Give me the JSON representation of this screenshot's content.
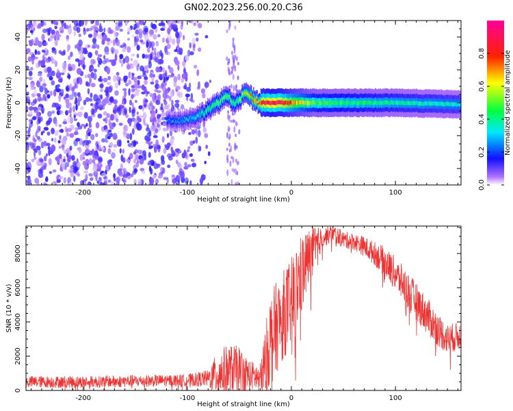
{
  "title": "GN02.2023.256.00.20.C36",
  "chart_data": [
    {
      "type": "heatmap",
      "xlabel": "Height of straight line (km)",
      "ylabel": "Frequency (Hz)",
      "xlim": [
        -255,
        163
      ],
      "ylim": [
        -50,
        50
      ],
      "x_ticks": [
        -200,
        -100,
        0,
        100
      ],
      "x_tick_labels": [
        "-200",
        "-100",
        "0",
        "100"
      ],
      "y_ticks": [
        -40,
        -20,
        0,
        20,
        40
      ],
      "y_tick_labels": [
        "-40",
        "-20",
        "0",
        "20",
        "40"
      ],
      "colorbar": {
        "label": "Normalized spectral amplitude",
        "range": [
          0,
          1
        ],
        "ticks": [
          0.0,
          0.2,
          0.4,
          0.6,
          0.8
        ],
        "tick_labels": [
          "0.0",
          "0.2",
          "0.4",
          "0.6",
          "0.8"
        ],
        "colormap": "rainbow (white - purple - blue - cyan - green - yellow - red - magenta)"
      },
      "signal_track": {
        "description_points_x": [
          -120,
          -100,
          -90,
          -80,
          -70,
          -62,
          -55,
          -50,
          -45,
          -40,
          -35,
          -30,
          -20,
          -10,
          0,
          20,
          50,
          100,
          163
        ],
        "frequency_hz": [
          -11,
          -10,
          -8,
          -4,
          0,
          5,
          -1,
          2,
          6,
          4,
          1,
          0,
          0,
          0,
          0,
          0,
          0,
          0,
          -1
        ],
        "peak_amplitude": [
          0.25,
          0.3,
          0.35,
          0.45,
          0.5,
          0.5,
          0.45,
          0.5,
          0.6,
          0.7,
          0.8,
          0.85,
          0.95,
          0.9,
          0.75,
          0.5,
          0.45,
          0.4,
          0.35
        ]
      },
      "noise_region_x": [
        -255,
        -85
      ]
    },
    {
      "type": "line",
      "xlabel": "Height of straight line (km)",
      "ylabel": "SNR (10 * v/v)",
      "xlim": [
        -255,
        163
      ],
      "ylim": [
        0,
        9600
      ],
      "x_ticks": [
        -200,
        -100,
        0,
        100
      ],
      "x_tick_labels": [
        "-200",
        "-100",
        "0",
        "100"
      ],
      "y_ticks": [
        0,
        2000,
        4000,
        6000,
        8000
      ],
      "y_tick_labels": [
        "0",
        "2000",
        "4000",
        "6000",
        "8000"
      ],
      "series": [
        {
          "color": "#ee3333",
          "envelope_x": [
            -255,
            -200,
            -150,
            -100,
            -80,
            -70,
            -60,
            -50,
            -40,
            -30,
            -25,
            -20,
            -10,
            0,
            10,
            20,
            30,
            40,
            50,
            60,
            70,
            80,
            90,
            100,
            110,
            120,
            130,
            140,
            150,
            163
          ],
          "envelope_y": [
            500,
            500,
            550,
            600,
            700,
            1000,
            1200,
            1200,
            900,
            700,
            1800,
            3000,
            4200,
            5200,
            6800,
            8200,
            8900,
            9200,
            8800,
            8700,
            8400,
            8000,
            7500,
            6800,
            6000,
            5200,
            4400,
            3600,
            3000,
            3200
          ],
          "noise_amplitude": [
            350,
            350,
            350,
            350,
            500,
            1400,
            1500,
            1400,
            900,
            800,
            2000,
            2800,
            2600,
            2600,
            2400,
            1400,
            600,
            500,
            500,
            500,
            600,
            700,
            900,
            1000,
            1100,
            1100,
            1100,
            1000,
            900,
            800
          ]
        }
      ]
    }
  ]
}
